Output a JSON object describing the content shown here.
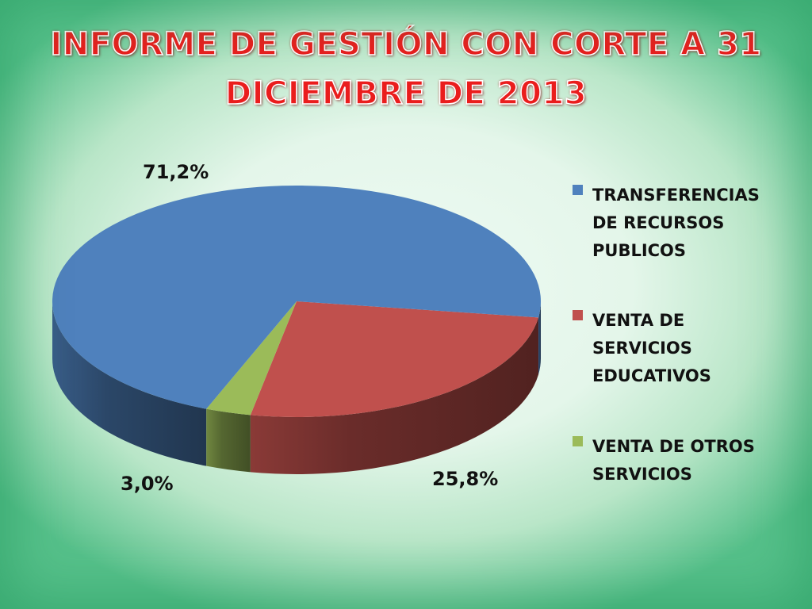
{
  "slide": {
    "title_line1": "INFORME DE GESTIÓN CON CORTE A 31",
    "title_line2": "DICIEMBRE DE 2013"
  },
  "chart_data": {
    "type": "pie",
    "style": "3d",
    "categories": [
      "TRANSFERENCIAS DE RECURSOS PUBLICOS",
      "VENTA DE SERVICIOS EDUCATIVOS",
      "VENTA DE OTROS SERVICIOS"
    ],
    "values": [
      71.2,
      25.8,
      3.0
    ],
    "value_labels": [
      "71,2%",
      "25,8%",
      "3,0%"
    ],
    "colors": [
      "#4f81bd",
      "#c0504d",
      "#9bbb59"
    ],
    "legend_position": "right",
    "legend_lines": [
      [
        "TRANSFERENCIAS",
        "DE RECURSOS",
        "PUBLICOS"
      ],
      [
        "VENTA DE",
        "SERVICIOS",
        "EDUCATIVOS"
      ],
      [
        "VENTA DE OTROS",
        "SERVICIOS"
      ]
    ]
  }
}
